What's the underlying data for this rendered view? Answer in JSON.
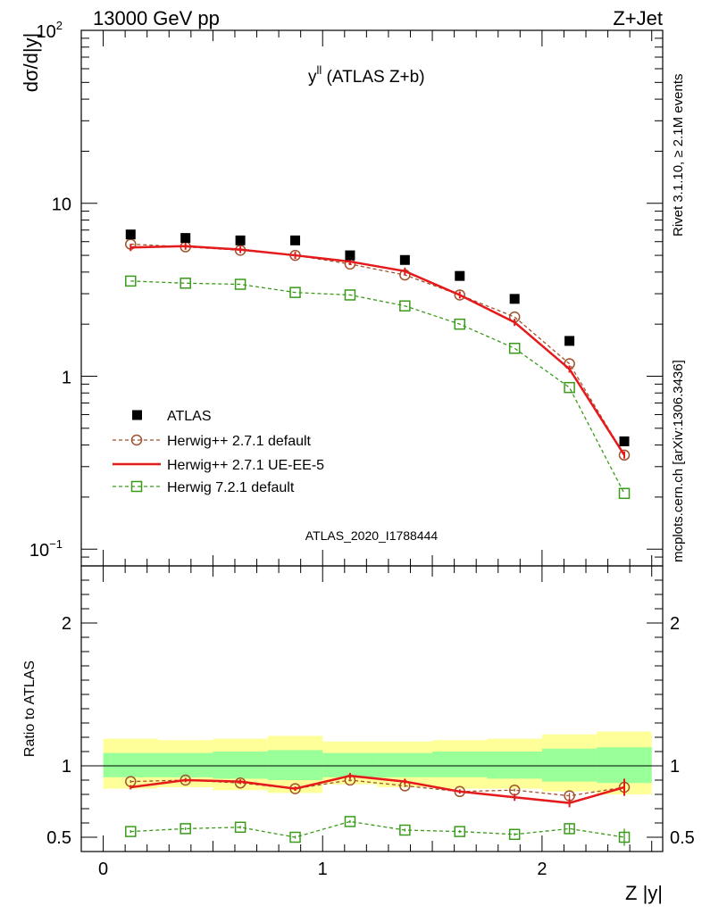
{
  "header": {
    "left": "13000 GeV pp",
    "right": "Z+Jet"
  },
  "side_labels": {
    "rivet": "Rivet 3.1.10, ≥ 2.1M events",
    "mcplots": "mcplots.cern.ch [arXiv:1306.3436]"
  },
  "plot_title": {
    "main": "y",
    "superscript": "ll",
    "suffix": " (ATLAS Z+b)"
  },
  "analysis_tag": "ATLAS_2020_I1788444",
  "legend": [
    {
      "label": "ATLAS",
      "series": "atlas"
    },
    {
      "label": "Herwig++ 2.7.1 default",
      "series": "hpp_default"
    },
    {
      "label": "Herwig++ 2.7.1 UE-EE-5",
      "series": "hpp_ueee5"
    },
    {
      "label": "Herwig 7.2.1 default",
      "series": "h7_default"
    }
  ],
  "colors": {
    "atlas": "#000000",
    "hpp_default": "#a0522d",
    "hpp_ueee5": "#e41a1c",
    "h7_default": "#3a9a1a",
    "band_outer": "#ffff99",
    "band_inner": "#99ff99",
    "analysis_tag": "#999999",
    "side_label": "#777777"
  },
  "chart_data": [
    {
      "type": "scatter",
      "panel": "main",
      "xlabel": "Z |y|",
      "ylabel": "dσ/d|y|",
      "yscale": "log",
      "xlim": [
        -0.1,
        2.55
      ],
      "ylim": [
        0.08,
        100
      ],
      "y_ticks": [
        {
          "value": 0.1,
          "base": "10",
          "exp": "−1"
        },
        {
          "value": 1,
          "base": "1",
          "exp": ""
        },
        {
          "value": 10,
          "base": "10",
          "exp": ""
        },
        {
          "value": 100,
          "base": "10",
          "exp": "2"
        }
      ],
      "x": [
        0.125,
        0.375,
        0.625,
        0.875,
        1.125,
        1.375,
        1.625,
        1.875,
        2.125,
        2.375
      ],
      "x_edges": [
        0,
        0.25,
        0.5,
        0.75,
        1.0,
        1.25,
        1.5,
        1.75,
        2.0,
        2.25,
        2.5
      ],
      "series": [
        {
          "key": "atlas",
          "name": "ATLAS",
          "style": "marker",
          "values": [
            6.6,
            6.3,
            6.1,
            6.1,
            5.0,
            4.7,
            3.8,
            2.8,
            1.6,
            0.42
          ]
        },
        {
          "key": "hpp_default",
          "name": "Herwig++ 2.7.1 default",
          "style": "dashed-circle",
          "values": [
            5.8,
            5.6,
            5.35,
            5.0,
            4.45,
            3.85,
            2.95,
            2.2,
            1.18,
            0.35
          ]
        },
        {
          "key": "hpp_ueee5",
          "name": "Herwig++ 2.7.1 UE-EE-5",
          "style": "solid",
          "values": [
            5.55,
            5.65,
            5.4,
            5.0,
            4.6,
            4.05,
            2.95,
            2.05,
            1.1,
            0.35
          ]
        },
        {
          "key": "h7_default",
          "name": "Herwig 7.2.1 default",
          "style": "dashed-square",
          "values": [
            3.55,
            3.45,
            3.4,
            3.05,
            2.95,
            2.55,
            2.0,
            1.45,
            0.86,
            0.21
          ]
        }
      ]
    },
    {
      "type": "line",
      "panel": "ratio",
      "xlabel": "Z |y|",
      "ylabel": "Ratio to ATLAS",
      "xlim": [
        -0.1,
        2.55
      ],
      "ylim": [
        0.4,
        2.4
      ],
      "x_ticks": [
        0,
        1,
        2
      ],
      "y_ticks": [
        0.5,
        1,
        2
      ],
      "x": [
        0.125,
        0.375,
        0.625,
        0.875,
        1.125,
        1.375,
        1.625,
        1.875,
        2.125,
        2.375
      ],
      "x_edges": [
        0,
        0.25,
        0.5,
        0.75,
        1.0,
        1.25,
        1.5,
        1.75,
        2.0,
        2.25,
        2.5
      ],
      "band_outer": {
        "lo": [
          0.84,
          0.85,
          0.83,
          0.81,
          0.87,
          0.85,
          0.84,
          0.84,
          0.82,
          0.8
        ],
        "hi": [
          1.19,
          1.18,
          1.19,
          1.21,
          1.17,
          1.17,
          1.18,
          1.19,
          1.22,
          1.24
        ]
      },
      "band_inner": {
        "lo": [
          0.92,
          0.92,
          0.91,
          0.9,
          0.92,
          0.92,
          0.92,
          0.91,
          0.89,
          0.88
        ],
        "hi": [
          1.09,
          1.09,
          1.1,
          1.11,
          1.09,
          1.09,
          1.1,
          1.1,
          1.12,
          1.13
        ]
      },
      "series": [
        {
          "key": "hpp_default",
          "name": "Herwig++ 2.7.1 default",
          "style": "dashed-circle",
          "values": [
            0.89,
            0.9,
            0.88,
            0.84,
            0.9,
            0.86,
            0.82,
            0.83,
            0.79,
            0.85
          ],
          "err": [
            0.01,
            0.01,
            0.01,
            0.01,
            0.01,
            0.01,
            0.01,
            0.01,
            0.02,
            0.05
          ]
        },
        {
          "key": "hpp_ueee5",
          "name": "Herwig++ 2.7.1 UE-EE-5",
          "style": "solid",
          "values": [
            0.85,
            0.9,
            0.89,
            0.84,
            0.93,
            0.89,
            0.82,
            0.78,
            0.74,
            0.85
          ],
          "err": [
            0.015,
            0.015,
            0.015,
            0.015,
            0.02,
            0.02,
            0.015,
            0.025,
            0.03,
            0.06
          ]
        },
        {
          "key": "h7_default",
          "name": "Herwig 7.2.1 default",
          "style": "dashed-square",
          "values": [
            0.54,
            0.56,
            0.57,
            0.5,
            0.61,
            0.55,
            0.54,
            0.52,
            0.56,
            0.5
          ],
          "err": [
            0.01,
            0.01,
            0.01,
            0.01,
            0.01,
            0.01,
            0.01,
            0.01,
            0.03,
            0.06
          ]
        }
      ]
    }
  ]
}
